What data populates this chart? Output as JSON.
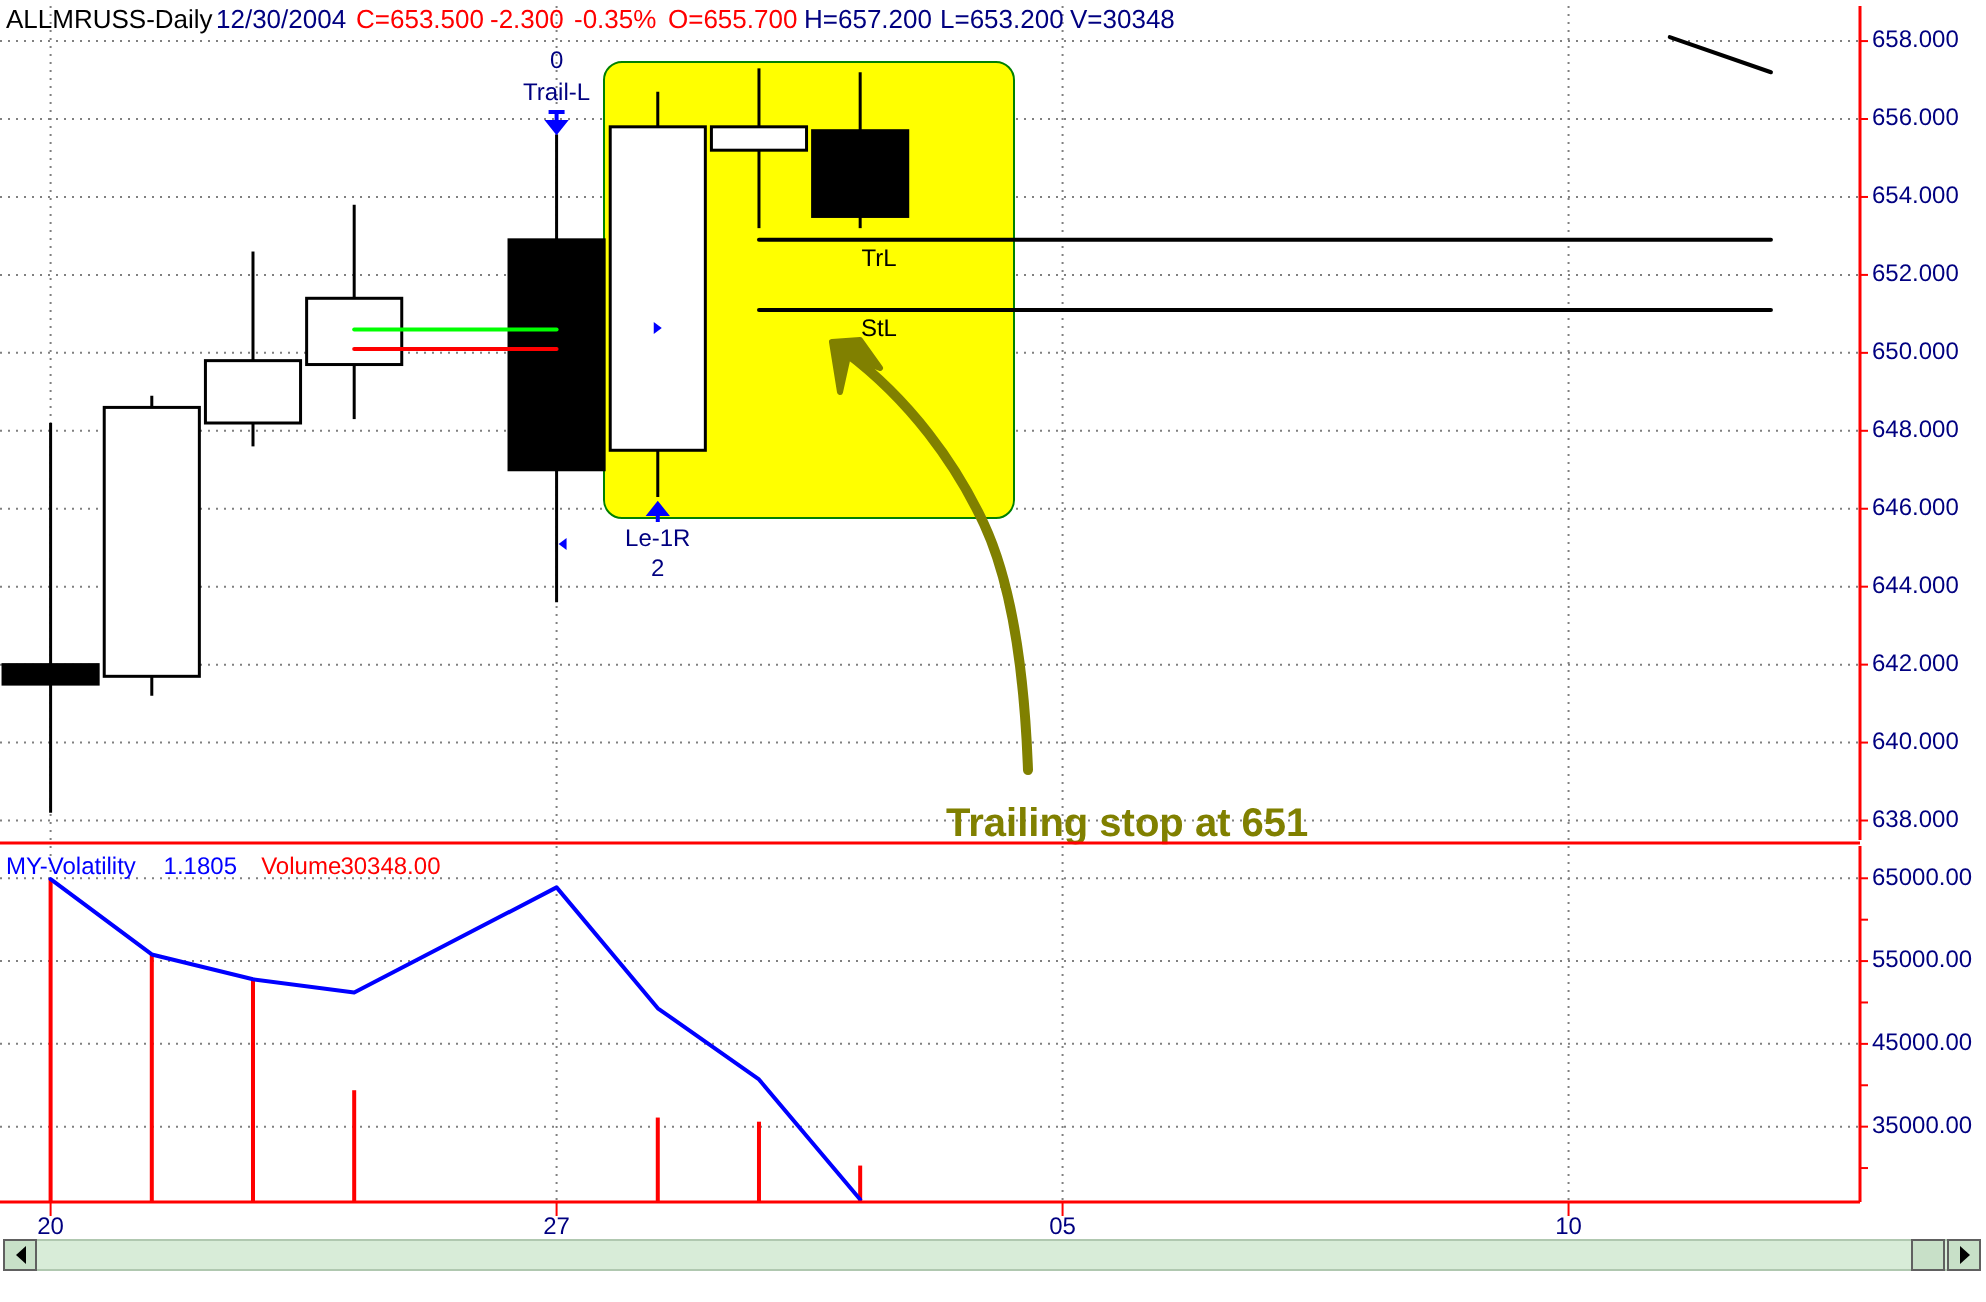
{
  "chart_data": [
    {
      "type": "candlestick",
      "title": "ALLMRUSS-Daily",
      "subtitle": "12/30/2004",
      "annotations": [
        "C=653.500",
        "-2.300",
        "-0.35%",
        "O=655.700",
        "H=657.200",
        "L=653.200",
        "V=30348",
        "0",
        "Trail-L",
        "Le-1R",
        "2",
        "Trailing stop at 651"
      ],
      "categories": [
        "20",
        null,
        null,
        null,
        null,
        "27",
        null,
        null,
        null,
        null,
        "05",
        null,
        null,
        null,
        null,
        "10",
        null,
        null
      ],
      "ohlc": [
        [
          642.0,
          648.2,
          638.2,
          641.5
        ],
        [
          641.7,
          648.9,
          641.2,
          648.6
        ],
        [
          648.2,
          652.6,
          647.6,
          649.8
        ],
        [
          649.7,
          653.8,
          648.3,
          651.4
        ],
        null,
        [
          652.9,
          655.6,
          643.6,
          647.0
        ],
        [
          647.5,
          656.7,
          646.3,
          655.8
        ],
        [
          655.2,
          657.3,
          653.2,
          655.8
        ],
        [
          655.7,
          657.2,
          653.2,
          653.5
        ],
        null,
        null,
        null,
        null,
        null,
        null,
        null,
        null,
        null
      ],
      "series": [
        {
          "type": "line",
          "color": "#00ff00",
          "values": [
            null,
            null,
            null,
            650.6,
            650.6,
            650.6,
            null,
            null,
            null,
            null,
            null,
            null,
            null,
            null,
            null,
            null,
            null,
            null
          ]
        },
        {
          "type": "line",
          "color": "#ff0000",
          "values": [
            null,
            null,
            null,
            650.1,
            650.1,
            650.1,
            null,
            null,
            null,
            null,
            null,
            null,
            null,
            null,
            null,
            null,
            null,
            null
          ]
        },
        {
          "type": "line",
          "name": "TrL",
          "color": "#000000",
          "values": [
            null,
            null,
            null,
            null,
            null,
            null,
            null,
            652.9,
            652.9,
            652.9,
            652.9,
            652.9,
            652.9,
            652.9,
            652.9,
            652.9,
            652.9,
            652.9
          ]
        },
        {
          "type": "line",
          "name": "StL",
          "color": "#000000",
          "values": [
            null,
            null,
            null,
            null,
            null,
            null,
            null,
            651.1,
            651.1,
            651.1,
            651.1,
            651.1,
            651.1,
            651.1,
            651.1,
            651.1,
            651.1,
            651.1
          ]
        },
        {
          "type": "line",
          "color": "#000000",
          "values": [
            null,
            null,
            null,
            null,
            null,
            null,
            null,
            null,
            null,
            null,
            null,
            null,
            null,
            null,
            null,
            null,
            658.1,
            657.2
          ]
        }
      ],
      "ylim": [
        637.5,
        658.9
      ],
      "yticks": [
        {
          "value": 638,
          "label": "638.000"
        },
        {
          "value": 640,
          "label": "640.000"
        },
        {
          "value": 642,
          "label": "642.000"
        },
        {
          "value": 644,
          "label": "644.000"
        },
        {
          "value": 646,
          "label": "646.000"
        },
        {
          "value": 648,
          "label": "648.000"
        },
        {
          "value": 650,
          "label": "650.000"
        },
        {
          "value": 652,
          "label": "652.000"
        },
        {
          "value": 654,
          "label": "654.000"
        },
        {
          "value": 656,
          "label": "656.000"
        },
        {
          "value": 658,
          "label": "658.000"
        }
      ],
      "grid": true,
      "tick_labels": "y"
    },
    {
      "type": "bar",
      "annotations": [
        "1.1805",
        "30348.00"
      ],
      "legend": "top left",
      "categories": [
        "20",
        null,
        null,
        null,
        null,
        "27",
        null,
        null,
        null,
        null,
        "05",
        null,
        null,
        null,
        null,
        "10",
        null,
        null
      ],
      "series": [
        {
          "type": "line",
          "name": "MY-Volatility",
          "color": "#0000ff",
          "values": [
            64900,
            55800,
            52800,
            51200,
            null,
            63900,
            49300,
            40700,
            26200,
            null,
            null,
            null,
            null,
            null,
            null,
            null,
            null,
            null
          ]
        },
        {
          "type": "bar",
          "name": "Volume",
          "color": "#ff0000",
          "values": [
            64900,
            55800,
            52800,
            39400,
            null,
            null,
            36100,
            35600,
            30300,
            null,
            null,
            null,
            null,
            null,
            null,
            null,
            null,
            null
          ]
        }
      ],
      "ylim": [
        25900,
        68900
      ],
      "yticks": [
        {
          "value": 30000,
          "label": null
        },
        {
          "value": 35000,
          "label": "35000.00"
        },
        {
          "value": 40000,
          "label": null
        },
        {
          "value": 45000,
          "label": "45000.00"
        },
        {
          "value": 50000,
          "label": null
        },
        {
          "value": 55000,
          "label": "55000.00"
        },
        {
          "value": 60000,
          "label": null
        },
        {
          "value": 65000,
          "label": "65000.00"
        }
      ],
      "grid": true
    }
  ]
}
